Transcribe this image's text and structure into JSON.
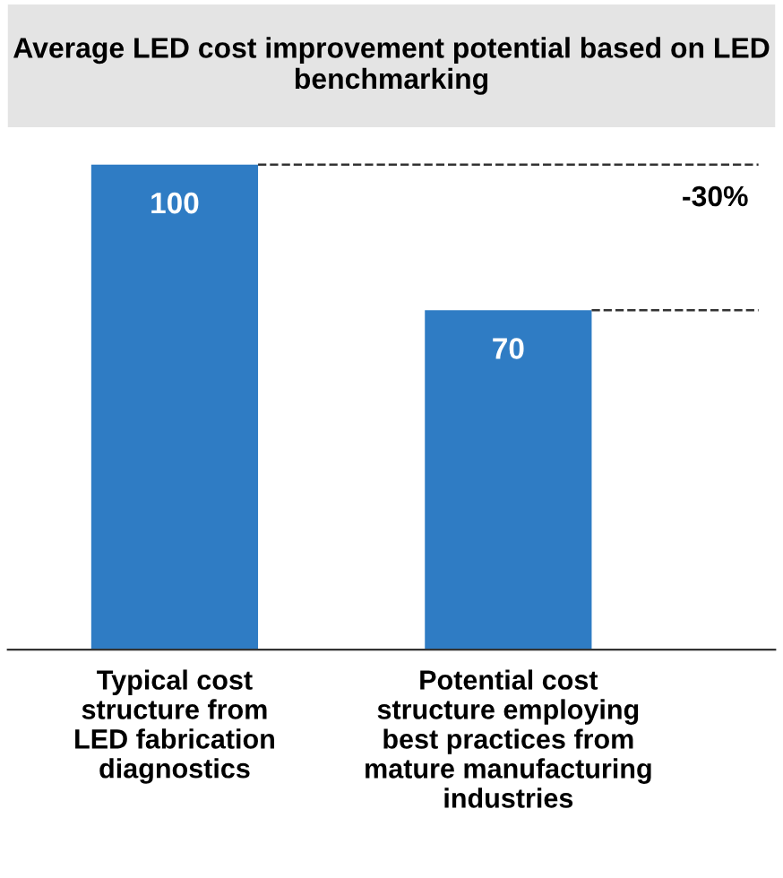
{
  "chart_data": {
    "type": "bar",
    "title": "Average LED cost improvement potential based on LED benchmarking",
    "categories": [
      "Typical cost\nstructure from\nLED fabrication\ndiagnostics",
      "Potential cost\nstructure employing\nbest practices from\nmature manufacturing\nindustries"
    ],
    "values": [
      100,
      70
    ],
    "color": "#2f7cc4",
    "data_labels": true,
    "ref_lines": [
      {
        "axis": "y",
        "value": 100,
        "line_style": "dashed",
        "color": "#333333"
      },
      {
        "axis": "y",
        "value": 70,
        "line_style": "dashed",
        "color": "#333333"
      }
    ],
    "annotations": [
      "-30%"
    ]
  }
}
